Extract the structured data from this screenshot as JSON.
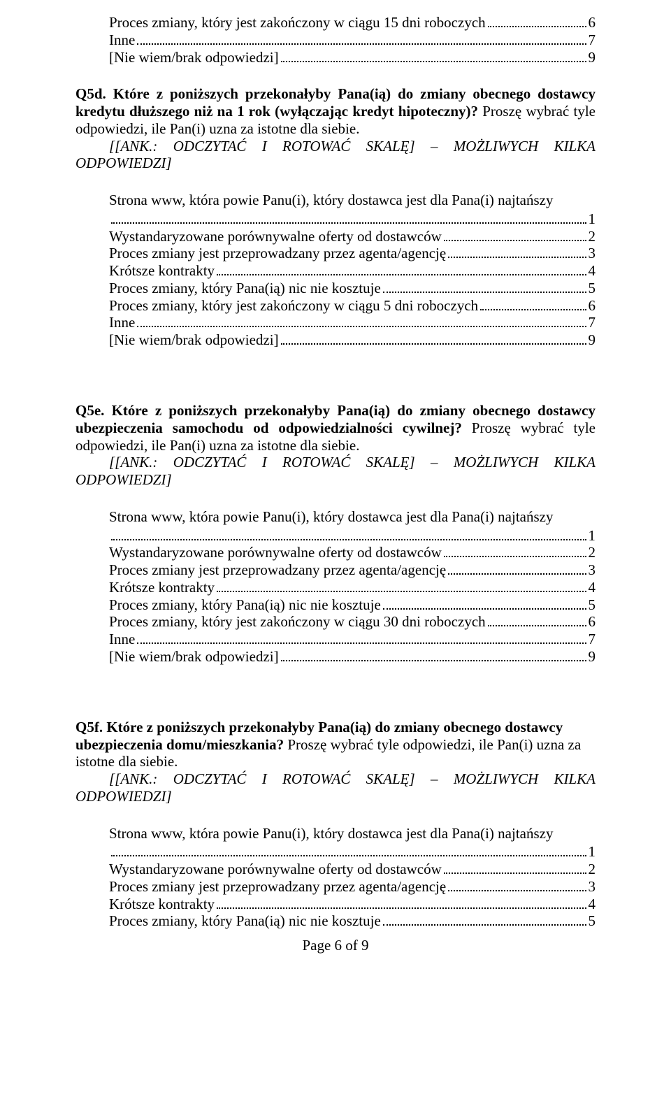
{
  "page": {
    "number": "Page 6 of 9",
    "font_family": "Times New Roman",
    "font_size_pt": 16,
    "text_color": "#000000",
    "background_color": "#ffffff"
  },
  "intro": {
    "opt1": {
      "text": "Proces zmiany, który jest zakończony w ciągu 15 dni roboczych",
      "num": "6"
    },
    "opt2": {
      "text": "Inne",
      "num": "7"
    },
    "opt3": {
      "text": "[Nie wiem/brak odpowiedzi]",
      "num": "9"
    }
  },
  "ank": {
    "indent_label": "[[ANK.:",
    "word2": "ODCZYTAĆ",
    "word3": "I",
    "word4": "ROTOWAĆ",
    "word5": "SKALĘ]",
    "dash": "–",
    "word6": "MOŻLIWYCH",
    "word7": "KILKA",
    "line2": "ODPOWIEDZI]"
  },
  "q5d": {
    "label": "Q5d.",
    "bold": " Które z poniższych przekonałyby Pana(ią) do zmiany obecnego dostawcy kredytu dłuższego niż na 1 rok (wyłączając kredyt hipoteczny)?",
    "rest": " Proszę wybrać tyle odpowiedzi, ile Pan(i) uzna za istotne dla siebie.",
    "stem": "Strona www, która powie Panu(i), który dostawca jest dla Pana(i) najtańszy",
    "opts": [
      {
        "text": "",
        "num": "1"
      },
      {
        "text": "Wystandaryzowane porównywalne oferty od dostawców",
        "num": "2"
      },
      {
        "text": "Proces zmiany jest przeprowadzany przez agenta/agencję",
        "num": "3"
      },
      {
        "text": "Krótsze kontrakty",
        "num": "4"
      },
      {
        "text": "Proces zmiany, który Pana(ią) nic nie kosztuje",
        "num": "5"
      },
      {
        "text": "Proces zmiany, który jest zakończony w ciągu 5 dni roboczych",
        "num": "6"
      },
      {
        "text": "Inne",
        "num": "7"
      },
      {
        "text": "[Nie wiem/brak odpowiedzi]",
        "num": "9"
      }
    ]
  },
  "q5e": {
    "label": "Q5e.",
    "bold": " Które z poniższych przekonałyby Pana(ią) do zmiany obecnego dostawcy ubezpieczenia samochodu od odpowiedzialności cywilnej?",
    "rest": " Proszę wybrać tyle odpowiedzi, ile Pan(i) uzna za istotne dla siebie.",
    "stem": "Strona www, która powie Panu(i), który dostawca jest dla Pana(i) najtańszy",
    "opts": [
      {
        "text": "",
        "num": "1"
      },
      {
        "text": "Wystandaryzowane porównywalne oferty od dostawców",
        "num": "2"
      },
      {
        "text": "Proces zmiany jest przeprowadzany przez agenta/agencję",
        "num": "3"
      },
      {
        "text": "Krótsze kontrakty",
        "num": "4"
      },
      {
        "text": "Proces zmiany, który Pana(ią) nic nie kosztuje",
        "num": "5"
      },
      {
        "text": "Proces zmiany, który jest zakończony w ciągu 30 dni roboczych",
        "num": "6"
      },
      {
        "text": "Inne",
        "num": "7"
      },
      {
        "text": "[Nie wiem/brak odpowiedzi]",
        "num": "9"
      }
    ]
  },
  "q5f": {
    "label": "Q5f.",
    "bold": " Które z poniższych przekonałyby Pana(ią) do zmiany obecnego dostawcy ubezpieczenia domu/mieszkania?",
    "rest": " Proszę wybrać tyle odpowiedzi, ile Pan(i) uzna za istotne dla siebie.",
    "indent_prefix": "istotne dla siebie.",
    "stem": "Strona www, która powie Panu(i), który dostawca jest dla Pana(i) najtańszy",
    "opts": [
      {
        "text": "",
        "num": "1"
      },
      {
        "text": "Wystandaryzowane porównywalne oferty od dostawców",
        "num": "2"
      },
      {
        "text": "Proces zmiany jest przeprowadzany przez agenta/agencję",
        "num": "3"
      },
      {
        "text": "Krótsze kontrakty",
        "num": "4"
      },
      {
        "text": "Proces zmiany, który Pana(ią) nic nie kosztuje",
        "num": "5"
      }
    ]
  }
}
